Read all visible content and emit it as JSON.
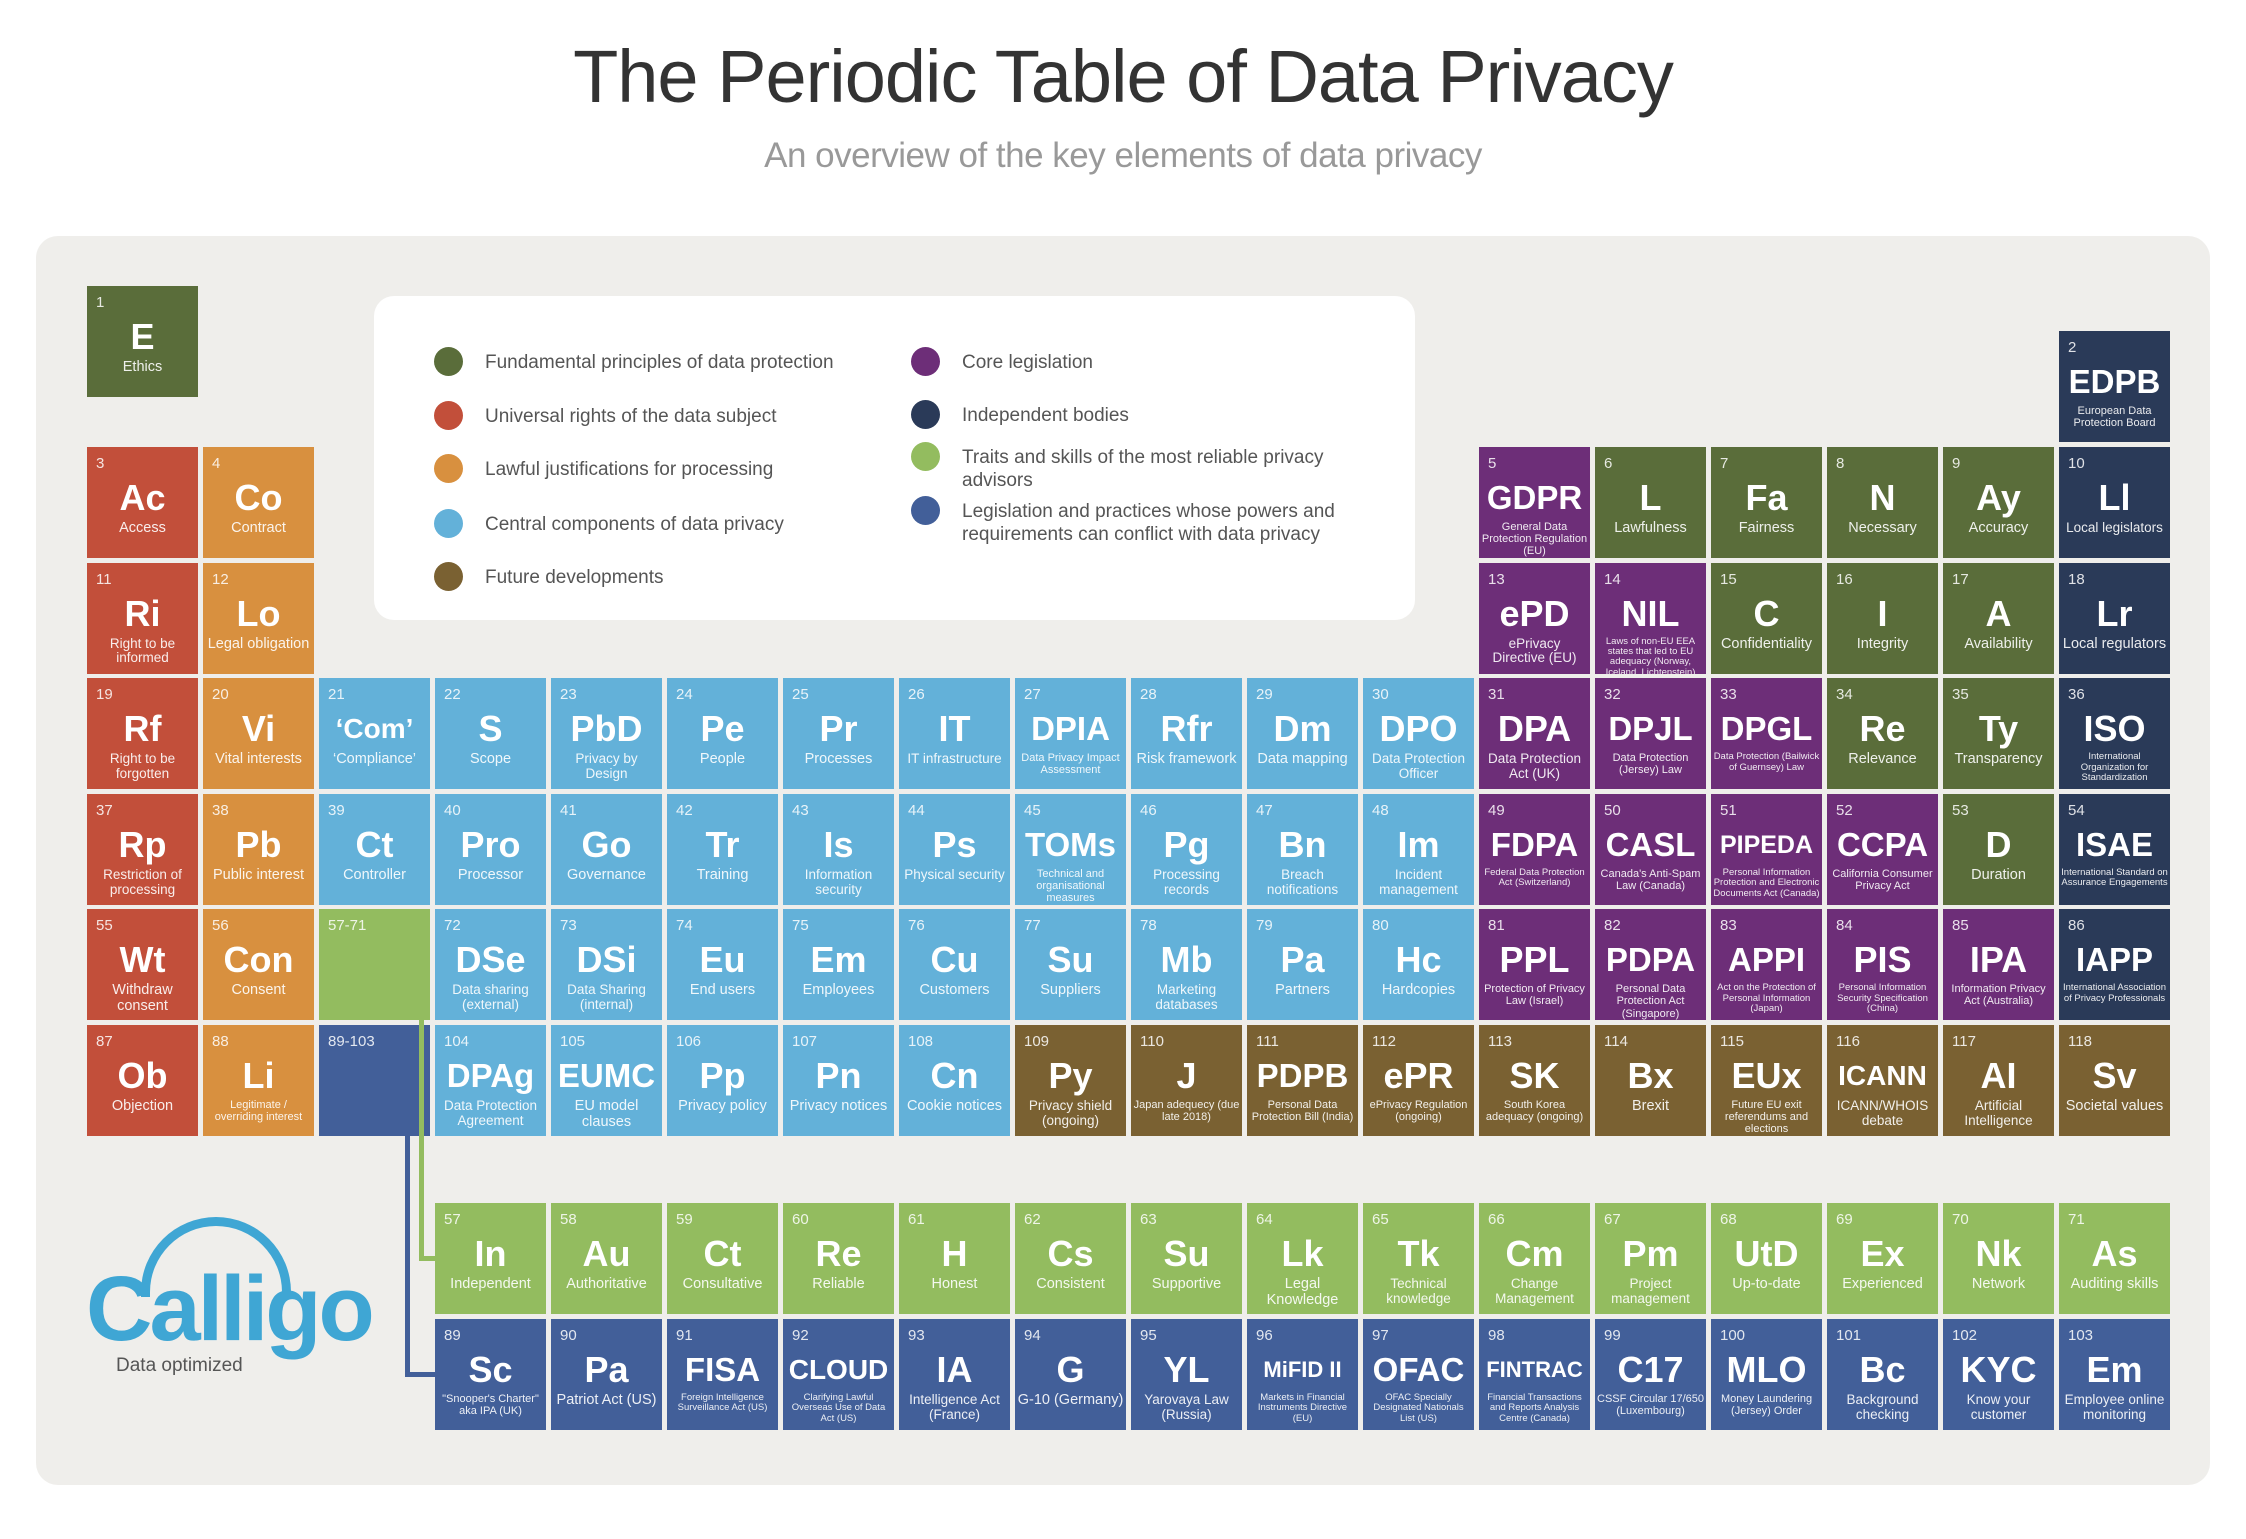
{
  "title": "The Periodic Table of Data Privacy",
  "subtitle": "An overview of the key elements of data privacy",
  "colors": {
    "F": "#5a6d3a",
    "R": "#c24f3a",
    "L": "#d8903f",
    "C": "#63b1d9",
    "FD": "#7a6132",
    "CL": "#6d2e78",
    "IB": "#2a3a58",
    "T": "#93bc5f",
    "CF": "#425f99"
  },
  "legend": [
    {
      "cat": "F",
      "label": "Fundamental principles of data protection"
    },
    {
      "cat": "R",
      "label": "Universal rights of the data subject"
    },
    {
      "cat": "L",
      "label": "Lawful justifications for processing"
    },
    {
      "cat": "C",
      "label": "Central components of data privacy"
    },
    {
      "cat": "FD",
      "label": "Future developments"
    },
    {
      "cat": "CL",
      "label": "Core legislation"
    },
    {
      "cat": "IB",
      "label": "Independent bodies"
    },
    {
      "cat": "T",
      "label": "Traits and skills of the most reliable privacy advisors"
    },
    {
      "cat": "CF",
      "label": "Legislation and practices whose powers and requirements can conflict with data privacy"
    }
  ],
  "placeholders": [
    {
      "label": "57-71",
      "cat": "T"
    },
    {
      "label": "89-103",
      "cat": "CF"
    }
  ],
  "elements": [
    {
      "n": "1",
      "sym": "E",
      "name": "Ethics",
      "cat": "F"
    },
    {
      "n": "2",
      "sym": "EDPB",
      "name": "European Data Protection Board",
      "cat": "IB"
    },
    {
      "n": "3",
      "sym": "Ac",
      "name": "Access",
      "cat": "R"
    },
    {
      "n": "4",
      "sym": "Co",
      "name": "Contract",
      "cat": "L"
    },
    {
      "n": "5",
      "sym": "GDPR",
      "name": "General Data Protection Regulation (EU)",
      "cat": "CL"
    },
    {
      "n": "6",
      "sym": "L",
      "name": "Lawfulness",
      "cat": "F"
    },
    {
      "n": "7",
      "sym": "Fa",
      "name": "Fairness",
      "cat": "F"
    },
    {
      "n": "8",
      "sym": "N",
      "name": "Necessary",
      "cat": "F"
    },
    {
      "n": "9",
      "sym": "Ay",
      "name": "Accuracy",
      "cat": "F"
    },
    {
      "n": "10",
      "sym": "Ll",
      "name": "Local legislators",
      "cat": "IB"
    },
    {
      "n": "11",
      "sym": "Ri",
      "name": "Right to be informed",
      "cat": "R"
    },
    {
      "n": "12",
      "sym": "Lo",
      "name": "Legal obligation",
      "cat": "L"
    },
    {
      "n": "13",
      "sym": "ePD",
      "name": "ePrivacy Directive (EU)",
      "cat": "CL"
    },
    {
      "n": "14",
      "sym": "NIL",
      "name": "Laws of non-EU EEA states that led to EU adequacy (Norway, Iceland, Lichtenstein)",
      "cat": "CL"
    },
    {
      "n": "15",
      "sym": "C",
      "name": "Confidentiality",
      "cat": "F"
    },
    {
      "n": "16",
      "sym": "I",
      "name": "Integrity",
      "cat": "F"
    },
    {
      "n": "17",
      "sym": "A",
      "name": "Availability",
      "cat": "F"
    },
    {
      "n": "18",
      "sym": "Lr",
      "name": "Local regulators",
      "cat": "IB"
    },
    {
      "n": "19",
      "sym": "Rf",
      "name": "Right to be forgotten",
      "cat": "R"
    },
    {
      "n": "20",
      "sym": "Vi",
      "name": "Vital interests",
      "cat": "L"
    },
    {
      "n": "21",
      "sym": "‘Com’",
      "name": "‘Compliance’",
      "cat": "C"
    },
    {
      "n": "22",
      "sym": "S",
      "name": "Scope",
      "cat": "C"
    },
    {
      "n": "23",
      "sym": "PbD",
      "name": "Privacy by Design",
      "cat": "C"
    },
    {
      "n": "24",
      "sym": "Pe",
      "name": "People",
      "cat": "C"
    },
    {
      "n": "25",
      "sym": "Pr",
      "name": "Processes",
      "cat": "C"
    },
    {
      "n": "26",
      "sym": "IT",
      "name": "IT infrastructure",
      "cat": "C"
    },
    {
      "n": "27",
      "sym": "DPIA",
      "name": "Data Privacy Impact Assessment",
      "cat": "C"
    },
    {
      "n": "28",
      "sym": "Rfr",
      "name": "Risk framework",
      "cat": "C"
    },
    {
      "n": "29",
      "sym": "Dm",
      "name": "Data mapping",
      "cat": "C"
    },
    {
      "n": "30",
      "sym": "DPO",
      "name": "Data Protection Officer",
      "cat": "C"
    },
    {
      "n": "31",
      "sym": "DPA",
      "name": "Data Protection Act (UK)",
      "cat": "CL"
    },
    {
      "n": "32",
      "sym": "DPJL",
      "name": "Data Protection (Jersey) Law",
      "cat": "CL"
    },
    {
      "n": "33",
      "sym": "DPGL",
      "name": "Data Protection (Bailwick of Guernsey) Law",
      "cat": "CL"
    },
    {
      "n": "34",
      "sym": "Re",
      "name": "Relevance",
      "cat": "F"
    },
    {
      "n": "35",
      "sym": "Ty",
      "name": "Transparency",
      "cat": "F"
    },
    {
      "n": "36",
      "sym": "ISO",
      "name": "International Organization for Standardization",
      "cat": "IB"
    },
    {
      "n": "37",
      "sym": "Rp",
      "name": "Restriction of processing",
      "cat": "R"
    },
    {
      "n": "38",
      "sym": "Pb",
      "name": "Public interest",
      "cat": "L"
    },
    {
      "n": "39",
      "sym": "Ct",
      "name": "Controller",
      "cat": "C"
    },
    {
      "n": "40",
      "sym": "Pro",
      "name": "Processor",
      "cat": "C"
    },
    {
      "n": "41",
      "sym": "Go",
      "name": "Governance",
      "cat": "C"
    },
    {
      "n": "42",
      "sym": "Tr",
      "name": "Training",
      "cat": "C"
    },
    {
      "n": "43",
      "sym": "Is",
      "name": "Information security",
      "cat": "C"
    },
    {
      "n": "44",
      "sym": "Ps",
      "name": "Physical security",
      "cat": "C"
    },
    {
      "n": "45",
      "sym": "TOMs",
      "name": "Technical and organisational measures",
      "cat": "C"
    },
    {
      "n": "46",
      "sym": "Pg",
      "name": "Processing records",
      "cat": "C"
    },
    {
      "n": "47",
      "sym": "Bn",
      "name": "Breach notifications",
      "cat": "C"
    },
    {
      "n": "48",
      "sym": "Im",
      "name": "Incident management",
      "cat": "C"
    },
    {
      "n": "49",
      "sym": "FDPA",
      "name": "Federal Data Protection Act (Switzerland)",
      "cat": "CL"
    },
    {
      "n": "50",
      "sym": "CASL",
      "name": "Canada's Anti-Spam Law (Canada)",
      "cat": "CL"
    },
    {
      "n": "51",
      "sym": "PIPEDA",
      "name": "Personal Information Protection and Electronic Documents Act (Canada)",
      "cat": "CL"
    },
    {
      "n": "52",
      "sym": "CCPA",
      "name": "California Consumer Privacy Act",
      "cat": "CL"
    },
    {
      "n": "53",
      "sym": "D",
      "name": "Duration",
      "cat": "F"
    },
    {
      "n": "54",
      "sym": "ISAE",
      "name": "International Standard on Assurance Engagements",
      "cat": "IB"
    },
    {
      "n": "55",
      "sym": "Wt",
      "name": "Withdraw consent",
      "cat": "R"
    },
    {
      "n": "56",
      "sym": "Con",
      "name": "Consent",
      "cat": "L"
    },
    {
      "n": "57",
      "sym": "In",
      "name": "Independent",
      "cat": "T"
    },
    {
      "n": "58",
      "sym": "Au",
      "name": "Authoritative",
      "cat": "T"
    },
    {
      "n": "59",
      "sym": "Ct",
      "name": "Consultative",
      "cat": "T"
    },
    {
      "n": "60",
      "sym": "Re",
      "name": "Reliable",
      "cat": "T"
    },
    {
      "n": "61",
      "sym": "H",
      "name": "Honest",
      "cat": "T"
    },
    {
      "n": "62",
      "sym": "Cs",
      "name": "Consistent",
      "cat": "T"
    },
    {
      "n": "63",
      "sym": "Su",
      "name": "Supportive",
      "cat": "T"
    },
    {
      "n": "64",
      "sym": "Lk",
      "name": "Legal Knowledge",
      "cat": "T"
    },
    {
      "n": "65",
      "sym": "Tk",
      "name": "Technical knowledge",
      "cat": "T"
    },
    {
      "n": "66",
      "sym": "Cm",
      "name": "Change Management",
      "cat": "T"
    },
    {
      "n": "67",
      "sym": "Pm",
      "name": "Project management",
      "cat": "T"
    },
    {
      "n": "68",
      "sym": "UtD",
      "name": "Up-to-date",
      "cat": "T"
    },
    {
      "n": "69",
      "sym": "Ex",
      "name": "Experienced",
      "cat": "T"
    },
    {
      "n": "70",
      "sym": "Nk",
      "name": "Network",
      "cat": "T"
    },
    {
      "n": "71",
      "sym": "As",
      "name": "Auditing skills",
      "cat": "T"
    },
    {
      "n": "72",
      "sym": "DSe",
      "name": "Data sharing (external)",
      "cat": "C"
    },
    {
      "n": "73",
      "sym": "DSi",
      "name": "Data Sharing (internal)",
      "cat": "C"
    },
    {
      "n": "74",
      "sym": "Eu",
      "name": "End users",
      "cat": "C"
    },
    {
      "n": "75",
      "sym": "Em",
      "name": "Employees",
      "cat": "C"
    },
    {
      "n": "76",
      "sym": "Cu",
      "name": "Customers",
      "cat": "C"
    },
    {
      "n": "77",
      "sym": "Su",
      "name": "Suppliers",
      "cat": "C"
    },
    {
      "n": "78",
      "sym": "Mb",
      "name": "Marketing databases",
      "cat": "C"
    },
    {
      "n": "79",
      "sym": "Pa",
      "name": "Partners",
      "cat": "C"
    },
    {
      "n": "80",
      "sym": "Hc",
      "name": "Hardcopies",
      "cat": "C"
    },
    {
      "n": "81",
      "sym": "PPL",
      "name": "Protection of Privacy Law (Israel)",
      "cat": "CL"
    },
    {
      "n": "82",
      "sym": "PDPA",
      "name": "Personal Data Protection Act (Singapore)",
      "cat": "CL"
    },
    {
      "n": "83",
      "sym": "APPI",
      "name": "Act on the Protection of Personal Information (Japan)",
      "cat": "CL"
    },
    {
      "n": "84",
      "sym": "PIS",
      "name": "Personal Information Security Specification (China)",
      "cat": "CL"
    },
    {
      "n": "85",
      "sym": "IPA",
      "name": "Information Privacy Act (Australia)",
      "cat": "CL"
    },
    {
      "n": "86",
      "sym": "IAPP",
      "name": "International Association of Privacy Professionals",
      "cat": "IB"
    },
    {
      "n": "87",
      "sym": "Ob",
      "name": "Objection",
      "cat": "R"
    },
    {
      "n": "88",
      "sym": "Li",
      "name": "Legitimate / overriding interest",
      "cat": "L"
    },
    {
      "n": "89",
      "sym": "Sc",
      "name": "\"Snooper's Charter\" aka IPA (UK)",
      "cat": "CF"
    },
    {
      "n": "90",
      "sym": "Pa",
      "name": "Patriot Act (US)",
      "cat": "CF"
    },
    {
      "n": "91",
      "sym": "FISA",
      "name": "Foreign Intelligence Surveillance Act (US)",
      "cat": "CF"
    },
    {
      "n": "92",
      "sym": "CLOUD",
      "name": "Clarifying Lawful Overseas Use of Data Act (US)",
      "cat": "CF"
    },
    {
      "n": "93",
      "sym": "IA",
      "name": "Intelligence Act (France)",
      "cat": "CF"
    },
    {
      "n": "94",
      "sym": "G",
      "name": "G-10 (Germany)",
      "cat": "CF"
    },
    {
      "n": "95",
      "sym": "YL",
      "name": "Yarovaya Law (Russia)",
      "cat": "CF"
    },
    {
      "n": "96",
      "sym": "MiFID II",
      "name": "Markets in Financial Instruments Directive (EU)",
      "cat": "CF"
    },
    {
      "n": "97",
      "sym": "OFAC",
      "name": "OFAC Specially Designated Nationals List (US)",
      "cat": "CF"
    },
    {
      "n": "98",
      "sym": "FINTRAC",
      "name": "Financial Transactions and Reports Analysis Centre (Canada)",
      "cat": "CF"
    },
    {
      "n": "99",
      "sym": "C17",
      "name": "CSSF Circular 17/650 (Luxembourg)",
      "cat": "CF"
    },
    {
      "n": "100",
      "sym": "MLO",
      "name": "Money Laundering (Jersey) Order",
      "cat": "CF"
    },
    {
      "n": "101",
      "sym": "Bc",
      "name": "Background checking",
      "cat": "CF"
    },
    {
      "n": "102",
      "sym": "KYC",
      "name": "Know your customer",
      "cat": "CF"
    },
    {
      "n": "103",
      "sym": "Em",
      "name": "Employee online monitoring",
      "cat": "CF"
    },
    {
      "n": "104",
      "sym": "DPAg",
      "name": "Data Protection Agreement",
      "cat": "C"
    },
    {
      "n": "105",
      "sym": "EUMC",
      "name": "EU model clauses",
      "cat": "C"
    },
    {
      "n": "106",
      "sym": "Pp",
      "name": "Privacy policy",
      "cat": "C"
    },
    {
      "n": "107",
      "sym": "Pn",
      "name": "Privacy notices",
      "cat": "C"
    },
    {
      "n": "108",
      "sym": "Cn",
      "name": "Cookie notices",
      "cat": "C"
    },
    {
      "n": "109",
      "sym": "Py",
      "name": "Privacy shield (ongoing)",
      "cat": "FD"
    },
    {
      "n": "110",
      "sym": "J",
      "name": "Japan adequecy (due late 2018)",
      "cat": "FD"
    },
    {
      "n": "111",
      "sym": "PDPB",
      "name": "Personal Data Protection Bill (India)",
      "cat": "FD"
    },
    {
      "n": "112",
      "sym": "ePR",
      "name": "ePrivacy Regulation (ongoing)",
      "cat": "FD"
    },
    {
      "n": "113",
      "sym": "SK",
      "name": "South Korea adequacy (ongoing)",
      "cat": "FD"
    },
    {
      "n": "114",
      "sym": "Bx",
      "name": "Brexit",
      "cat": "FD"
    },
    {
      "n": "115",
      "sym": "EUx",
      "name": "Future EU exit referendums and elections",
      "cat": "FD"
    },
    {
      "n": "116",
      "sym": "ICANN",
      "name": "ICANN/WHOIS debate",
      "cat": "FD"
    },
    {
      "n": "117",
      "sym": "AI",
      "name": "Artificial Intelligence",
      "cat": "FD"
    },
    {
      "n": "118",
      "sym": "Sv",
      "name": "Societal values",
      "cat": "FD"
    }
  ],
  "logo": {
    "word": "Calligo",
    "tagline": "Data optimized"
  }
}
